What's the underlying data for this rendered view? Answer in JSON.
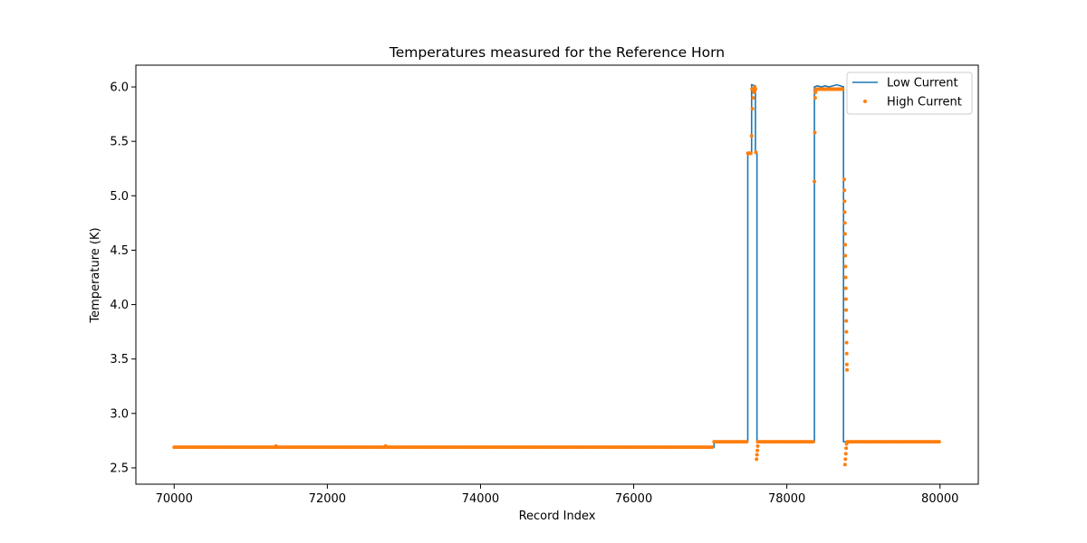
{
  "chart_data": {
    "type": "line",
    "title": "Temperatures measured for the Reference Horn",
    "xlabel": "Record Index",
    "ylabel": "Temperature (K)",
    "xlim": [
      69500,
      80500
    ],
    "ylim": [
      2.35,
      6.2
    ],
    "xticks": [
      70000,
      72000,
      74000,
      76000,
      78000,
      80000
    ],
    "yticks": [
      2.5,
      3.0,
      3.5,
      4.0,
      4.5,
      5.0,
      5.5,
      6.0
    ],
    "xtick_labels": [
      "70000",
      "72000",
      "74000",
      "76000",
      "78000",
      "80000"
    ],
    "ytick_labels": [
      "2.5",
      "3.0",
      "3.5",
      "4.0",
      "4.5",
      "5.0",
      "5.5",
      "6.0"
    ],
    "grid": false,
    "legend_position": "top-right",
    "series": [
      {
        "name": "Low Current",
        "kind": "line",
        "color": "#1f77b4",
        "points": [
          [
            70000,
            2.69
          ],
          [
            77050,
            2.69
          ],
          [
            77050,
            2.74
          ],
          [
            77490,
            2.74
          ],
          [
            77490,
            5.39
          ],
          [
            77540,
            5.39
          ],
          [
            77540,
            6.02
          ],
          [
            77590,
            6.01
          ],
          [
            77590,
            5.39
          ],
          [
            77610,
            5.39
          ],
          [
            77610,
            2.74
          ],
          [
            78360,
            2.74
          ],
          [
            78360,
            6.0
          ],
          [
            78400,
            6.01
          ],
          [
            78450,
            6.0
          ],
          [
            78500,
            6.01
          ],
          [
            78550,
            6.0
          ],
          [
            78600,
            6.01
          ],
          [
            78650,
            6.02
          ],
          [
            78700,
            6.01
          ],
          [
            78740,
            6.0
          ],
          [
            78740,
            2.74
          ],
          [
            80000,
            2.74
          ]
        ]
      },
      {
        "name": "High Current",
        "kind": "scatter",
        "color": "#ff7f0e",
        "segments": [
          {
            "x_start": 70000,
            "x_end": 77040,
            "step": 25,
            "y": 2.69
          },
          {
            "x_start": 77050,
            "x_end": 77480,
            "step": 25,
            "y": 2.74
          },
          {
            "x_start": 77490,
            "x_end": 77530,
            "step": 5,
            "y": 5.39
          },
          {
            "x_start": 77545,
            "x_end": 77590,
            "step": 5,
            "y": 5.98
          },
          {
            "x_start": 77620,
            "x_end": 78350,
            "step": 25,
            "y": 2.74
          },
          {
            "x_start": 78380,
            "x_end": 78730,
            "step": 10,
            "y": 5.98
          },
          {
            "x_start": 78790,
            "x_end": 80000,
            "step": 25,
            "y": 2.74
          }
        ],
        "points": [
          [
            71330,
            2.7
          ],
          [
            72760,
            2.7
          ],
          [
            77540,
            5.55
          ],
          [
            77550,
            5.8
          ],
          [
            77560,
            5.9
          ],
          [
            77570,
            5.95
          ],
          [
            77580,
            6.0
          ],
          [
            77595,
            5.4
          ],
          [
            77605,
            2.58
          ],
          [
            77610,
            2.62
          ],
          [
            77615,
            2.66
          ],
          [
            77620,
            2.7
          ],
          [
            78360,
            5.13
          ],
          [
            78365,
            5.58
          ],
          [
            78370,
            5.9
          ],
          [
            78375,
            5.95
          ],
          [
            78750,
            5.15
          ],
          [
            78752,
            5.05
          ],
          [
            78754,
            4.95
          ],
          [
            78756,
            4.85
          ],
          [
            78758,
            4.75
          ],
          [
            78760,
            4.65
          ],
          [
            78762,
            4.55
          ],
          [
            78764,
            4.45
          ],
          [
            78766,
            4.35
          ],
          [
            78768,
            4.25
          ],
          [
            78770,
            4.15
          ],
          [
            78772,
            4.05
          ],
          [
            78774,
            3.95
          ],
          [
            78776,
            3.85
          ],
          [
            78778,
            3.75
          ],
          [
            78780,
            3.65
          ],
          [
            78782,
            3.55
          ],
          [
            78784,
            3.45
          ],
          [
            78786,
            3.4
          ],
          [
            78760,
            2.53
          ],
          [
            78765,
            2.58
          ],
          [
            78770,
            2.63
          ],
          [
            78775,
            2.68
          ],
          [
            78780,
            2.72
          ]
        ]
      }
    ]
  }
}
